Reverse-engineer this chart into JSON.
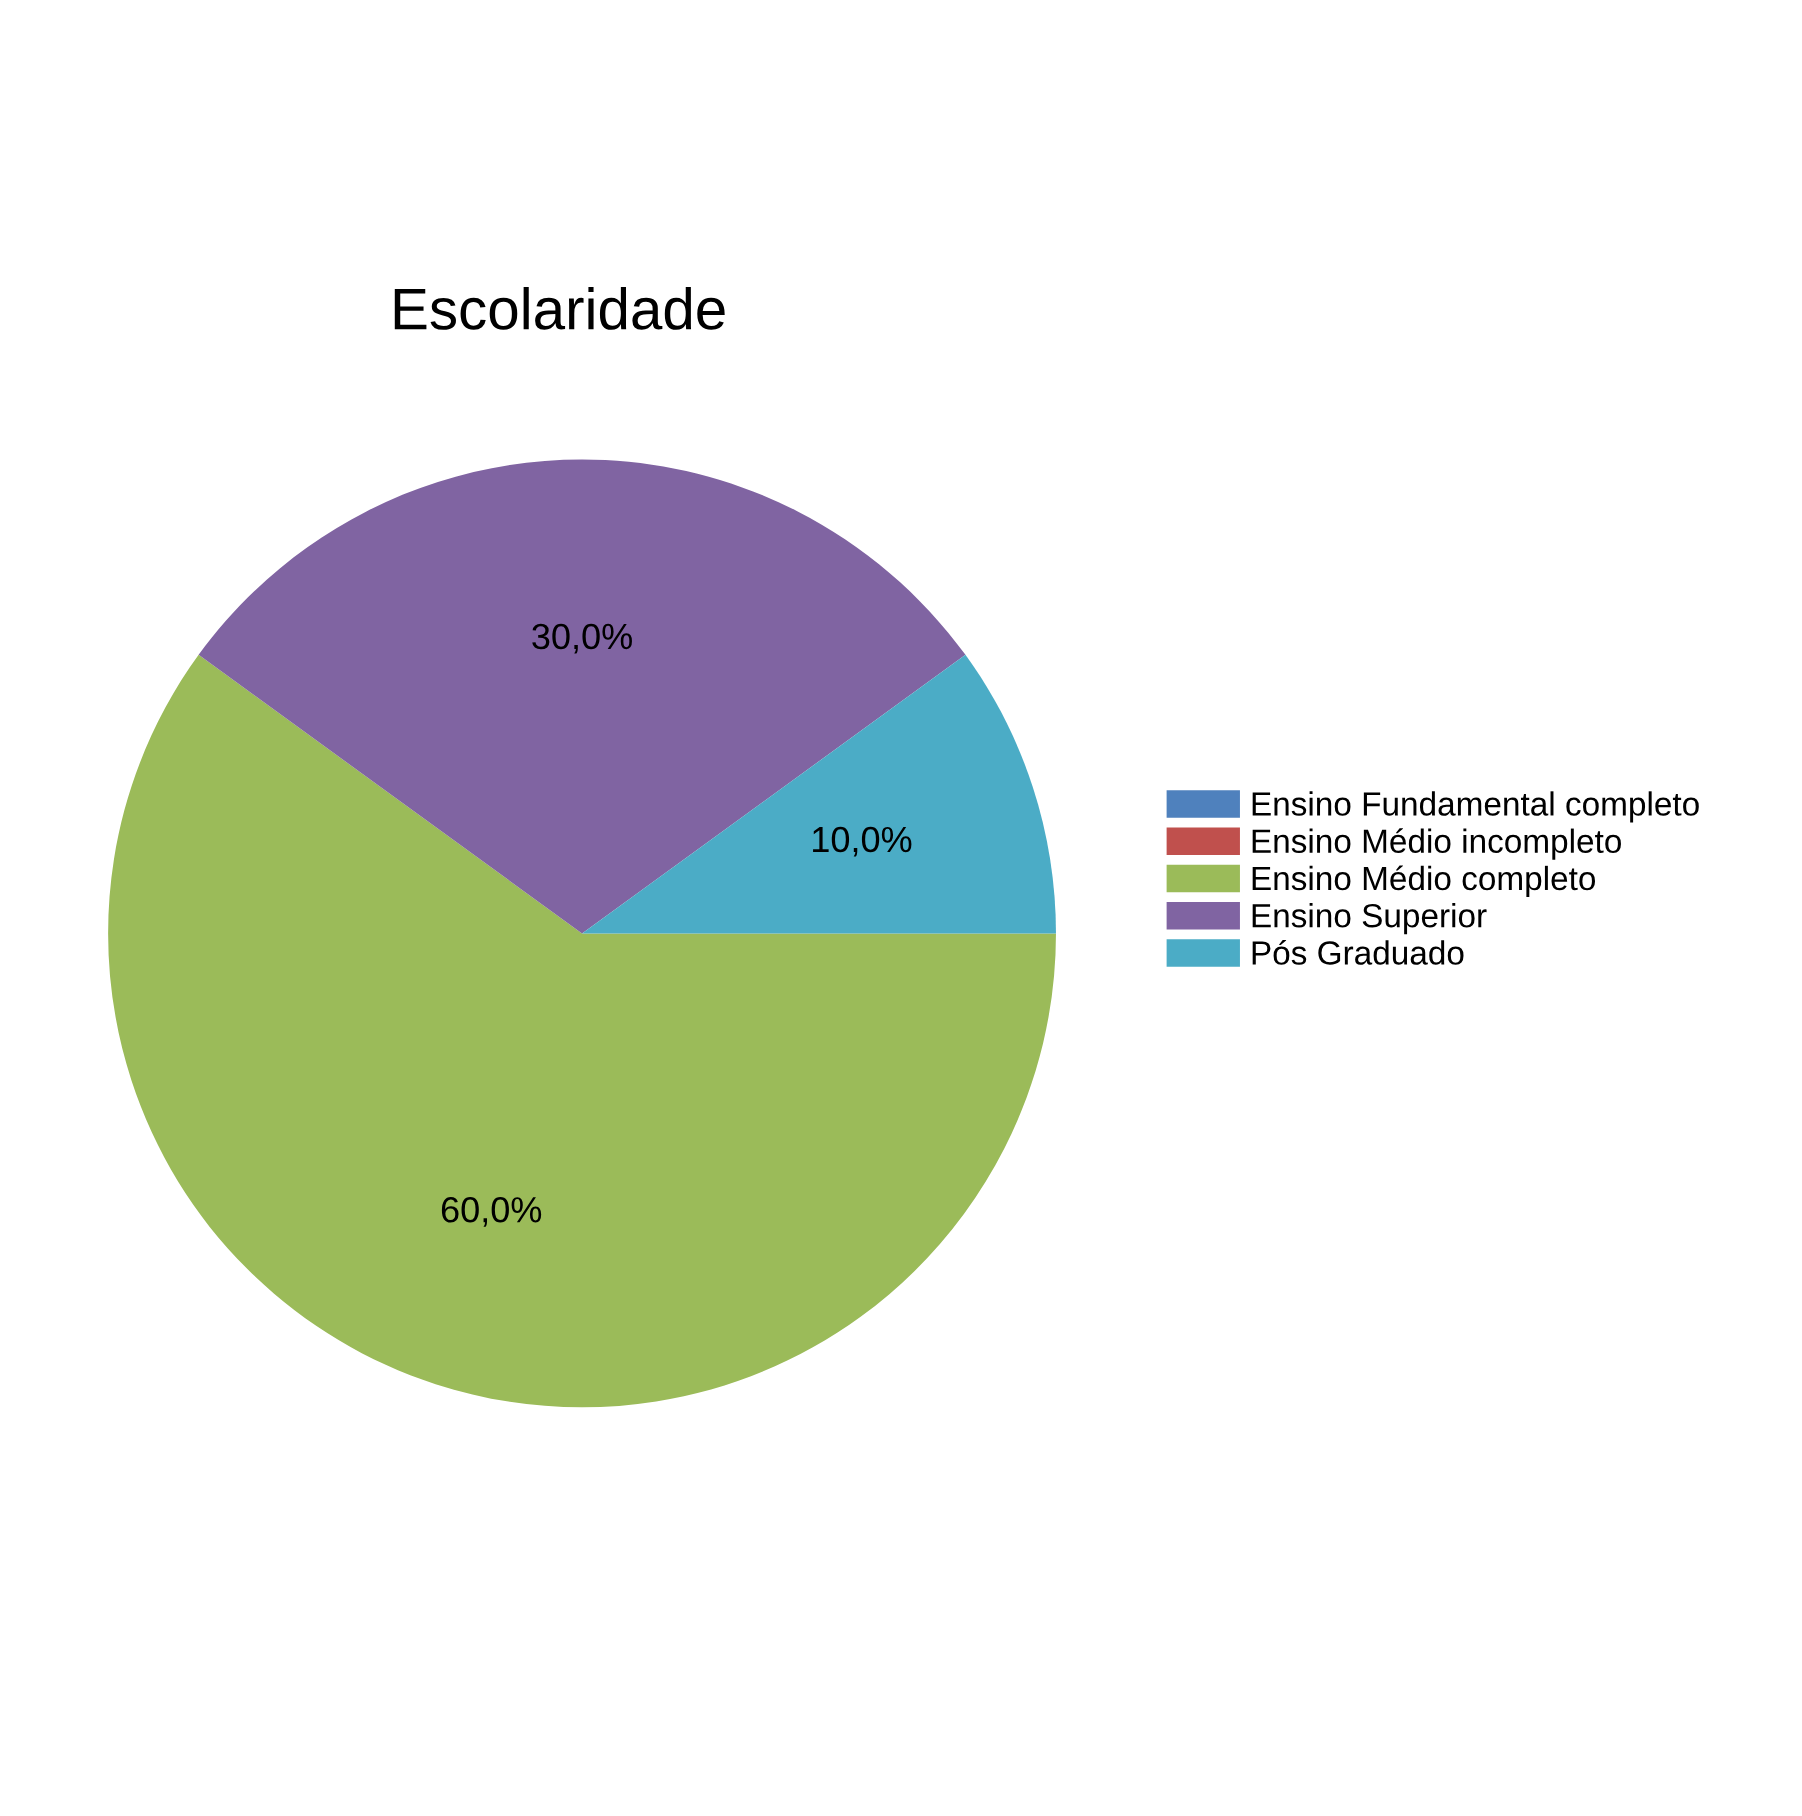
{
  "chart_data": {
    "type": "pie",
    "title": "Escolaridade",
    "categories": [
      "Ensino Fundamental completo",
      "Ensino Médio incompleto",
      "Ensino Médio completo",
      "Ensino Superior",
      "Pós Graduado"
    ],
    "values": [
      0,
      0,
      60,
      30,
      10
    ],
    "value_labels": [
      null,
      null,
      "60,0%",
      "30,0%",
      "10,0%"
    ],
    "colors": [
      "#4f81bd",
      "#c0504d",
      "#9bbb59",
      "#8064a2",
      "#4bacc6"
    ],
    "legend": "right"
  }
}
